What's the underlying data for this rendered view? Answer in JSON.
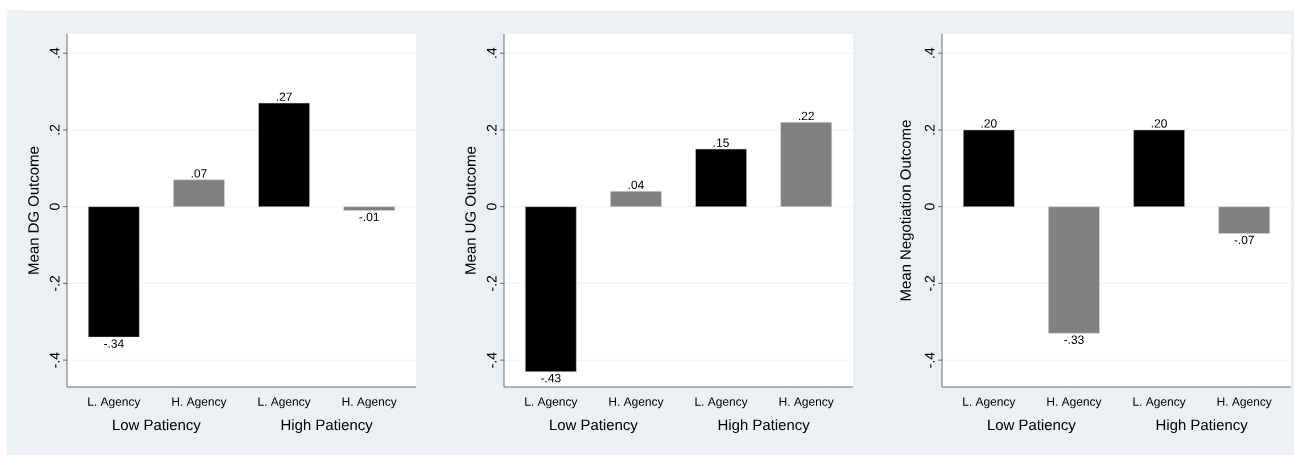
{
  "chart_data": [
    {
      "type": "bar",
      "ylabel": "Mean DG Outcome",
      "categories": [
        "L. Agency",
        "H. Agency",
        "L. Agency",
        "H. Agency"
      ],
      "values": [
        -0.34,
        0.07,
        0.27,
        -0.01
      ],
      "value_labels": [
        "-.34",
        ".07",
        ".27",
        "-.01"
      ],
      "colors": [
        "#000000",
        "#808080",
        "#000000",
        "#808080"
      ],
      "annotations": [
        "Low Patiency",
        "High Patiency"
      ],
      "ylim": [
        -0.47,
        0.45
      ],
      "yticks": [
        {
          "value": -0.4,
          "label": "-.4"
        },
        {
          "value": -0.2,
          "label": "-.2"
        },
        0,
        {
          "value": 0.2,
          "label": ".2"
        },
        {
          "value": 0.4,
          "label": ".4"
        }
      ],
      "grid": "y"
    },
    {
      "type": "bar",
      "ylabel": "Mean UG Outcome",
      "categories": [
        "L. Agency",
        "H. Agency",
        "L. Agency",
        "H. Agency"
      ],
      "values": [
        -0.43,
        0.04,
        0.15,
        0.22
      ],
      "value_labels": [
        "-.43",
        ".04",
        ".15",
        ".22"
      ],
      "colors": [
        "#000000",
        "#808080",
        "#000000",
        "#808080"
      ],
      "annotations": [
        "Low Patiency",
        "High Patiency"
      ],
      "ylim": [
        -0.47,
        0.45
      ],
      "yticks": [
        {
          "value": -0.4,
          "label": "-.4"
        },
        {
          "value": -0.2,
          "label": "-.2"
        },
        0,
        {
          "value": 0.2,
          "label": ".2"
        },
        {
          "value": 0.4,
          "label": ".4"
        }
      ],
      "grid": "y"
    },
    {
      "type": "bar",
      "ylabel": "Mean Negotiation Outcome",
      "categories": [
        "L. Agency",
        "H. Agency",
        "L. Agency",
        "H. Agency"
      ],
      "values": [
        0.2,
        -0.33,
        0.2,
        -0.07
      ],
      "value_labels": [
        ".20",
        "-.33",
        ".20",
        "-.07"
      ],
      "colors": [
        "#000000",
        "#808080",
        "#000000",
        "#808080"
      ],
      "annotations": [
        "Low Patiency",
        "High Patiency"
      ],
      "ylim": [
        -0.47,
        0.45
      ],
      "yticks": [
        {
          "value": -0.4,
          "label": "-.4"
        },
        {
          "value": -0.2,
          "label": "-.2"
        },
        0,
        {
          "value": 0.2,
          "label": ".2"
        },
        {
          "value": 0.4,
          "label": ".4"
        }
      ],
      "grid": "y"
    }
  ]
}
